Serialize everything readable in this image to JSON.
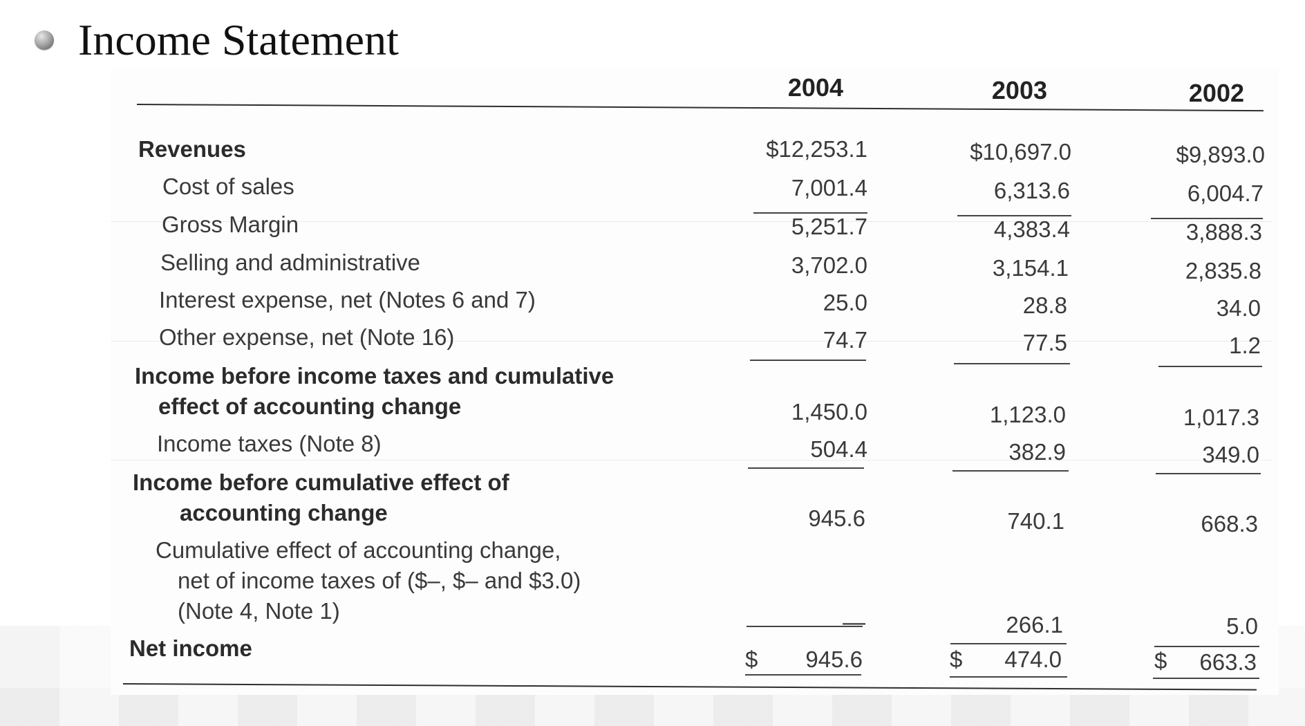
{
  "slide": {
    "title": "Income Statement"
  },
  "table": {
    "years": [
      "2004",
      "2003",
      "2002"
    ],
    "rows": [
      {
        "label": "Revenues",
        "values": [
          "$12,253.1",
          "$10,697.0",
          "$9,893.0"
        ]
      },
      {
        "label": "Cost of sales",
        "values": [
          "7,001.4",
          "6,313.6",
          "6,004.7"
        ]
      },
      {
        "label": "Gross Margin",
        "values": [
          "5,251.7",
          "4,383.4",
          "3,888.3"
        ]
      },
      {
        "label": "Selling and administrative",
        "values": [
          "3,702.0",
          "3,154.1",
          "2,835.8"
        ]
      },
      {
        "label": "Interest expense, net (Notes 6 and 7)",
        "values": [
          "25.0",
          "28.8",
          "34.0"
        ]
      },
      {
        "label": "Other expense, net (Note 16)",
        "values": [
          "74.7",
          "77.5",
          "1.2"
        ]
      },
      {
        "label_line1": "Income before income taxes and cumulative",
        "label_line2": "effect of accounting change",
        "values": [
          "1,450.0",
          "1,123.0",
          "1,017.3"
        ]
      },
      {
        "label": "Income taxes (Note 8)",
        "values": [
          "504.4",
          "382.9",
          "349.0"
        ]
      },
      {
        "label_line1": "Income before cumulative effect of",
        "label_line2": "accounting change",
        "values": [
          "945.6",
          "740.1",
          "668.3"
        ]
      },
      {
        "label_line1": "Cumulative effect of accounting change,",
        "label_line2": "net of income taxes of ($–, $– and $3.0)",
        "label_line3": "(Note 4, Note 1)",
        "values": [
          "—",
          "266.1",
          "5.0"
        ]
      },
      {
        "label": "Net income",
        "currency": "$",
        "values": [
          "945.6",
          "474.0",
          "663.3"
        ]
      }
    ]
  }
}
